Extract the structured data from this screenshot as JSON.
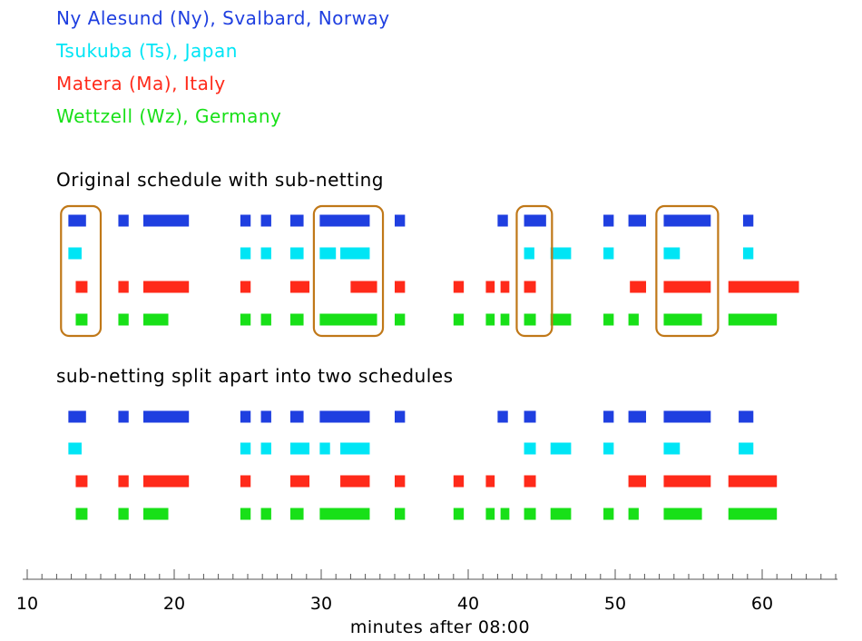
{
  "legend": [
    {
      "label": "Ny Alesund (Ny), Svalbard, Norway",
      "color": "#1f3fe0"
    },
    {
      "label": "Tsukuba (Ts), Japan",
      "color": "#00e5f5"
    },
    {
      "label": "Matera (Ma), Italy",
      "color": "#ff2a1a"
    },
    {
      "label": "Wettzell (Wz), Germany",
      "color": "#18e018"
    }
  ],
  "chart_data": {
    "type": "timeline",
    "xlabel": "minutes after 08:00",
    "xlim": [
      10,
      65
    ],
    "xticks": [
      10,
      20,
      30,
      40,
      50,
      60
    ],
    "box_color": "#c07818",
    "panels": [
      {
        "title": "Original schedule with sub-netting",
        "rows": [
          {
            "station": "Ny",
            "segments": [
              [
                12.8,
                14.0
              ],
              [
                16.2,
                16.9
              ],
              [
                17.9,
                21.0
              ],
              [
                24.5,
                25.2
              ],
              [
                25.9,
                26.6
              ],
              [
                27.9,
                28.8
              ],
              [
                29.9,
                33.3
              ],
              [
                35.0,
                35.7
              ],
              [
                42.0,
                42.7
              ],
              [
                43.8,
                45.3
              ],
              [
                49.2,
                49.9
              ],
              [
                50.9,
                52.1
              ],
              [
                53.3,
                56.5
              ],
              [
                58.7,
                59.4
              ]
            ]
          },
          {
            "station": "Ts",
            "segments": [
              [
                12.8,
                13.7
              ],
              [
                24.5,
                25.2
              ],
              [
                25.9,
                26.6
              ],
              [
                27.9,
                28.8
              ],
              [
                29.9,
                31.0
              ],
              [
                31.3,
                33.3
              ],
              [
                43.8,
                44.5
              ],
              [
                45.6,
                47.0
              ],
              [
                49.2,
                49.9
              ],
              [
                53.3,
                54.4
              ],
              [
                58.7,
                59.4
              ]
            ]
          },
          {
            "station": "Ma",
            "segments": [
              [
                13.3,
                14.1
              ],
              [
                16.2,
                16.9
              ],
              [
                17.9,
                21.0
              ],
              [
                24.5,
                25.2
              ],
              [
                27.9,
                29.2
              ],
              [
                32.0,
                33.8
              ],
              [
                35.0,
                35.7
              ],
              [
                39.0,
                39.7
              ],
              [
                41.2,
                41.8
              ],
              [
                42.2,
                42.8
              ],
              [
                43.8,
                44.6
              ],
              [
                51.0,
                52.1
              ],
              [
                53.3,
                56.5
              ],
              [
                57.7,
                62.5
              ]
            ]
          },
          {
            "station": "Wz",
            "segments": [
              [
                13.3,
                14.1
              ],
              [
                16.2,
                16.9
              ],
              [
                17.9,
                19.6
              ],
              [
                24.5,
                25.2
              ],
              [
                25.9,
                26.6
              ],
              [
                27.9,
                28.8
              ],
              [
                29.9,
                33.8
              ],
              [
                35.0,
                35.7
              ],
              [
                39.0,
                39.7
              ],
              [
                41.2,
                41.8
              ],
              [
                42.2,
                42.8
              ],
              [
                43.8,
                44.6
              ],
              [
                45.6,
                47.0
              ],
              [
                49.2,
                49.9
              ],
              [
                50.9,
                51.6
              ],
              [
                53.3,
                55.9
              ],
              [
                57.7,
                61.0
              ]
            ]
          }
        ],
        "boxes": [
          [
            12.3,
            15.0
          ],
          [
            29.5,
            34.2
          ],
          [
            43.3,
            45.7
          ],
          [
            52.8,
            57.0
          ]
        ]
      },
      {
        "title": "sub-netting split apart into two schedules",
        "rows": [
          {
            "station": "Ny",
            "segments": [
              [
                12.8,
                14.0
              ],
              [
                16.2,
                16.9
              ],
              [
                17.9,
                21.0
              ],
              [
                24.5,
                25.2
              ],
              [
                25.9,
                26.6
              ],
              [
                27.9,
                28.8
              ],
              [
                29.9,
                33.3
              ],
              [
                35.0,
                35.7
              ],
              [
                42.0,
                42.7
              ],
              [
                43.8,
                44.6
              ],
              [
                49.2,
                49.9
              ],
              [
                50.9,
                52.1
              ],
              [
                53.3,
                56.5
              ],
              [
                58.4,
                59.4
              ]
            ]
          },
          {
            "station": "Ts",
            "segments": [
              [
                12.8,
                13.7
              ],
              [
                24.5,
                25.2
              ],
              [
                25.9,
                26.6
              ],
              [
                27.9,
                29.2
              ],
              [
                29.9,
                30.6
              ],
              [
                31.3,
                33.3
              ],
              [
                43.8,
                44.6
              ],
              [
                45.6,
                47.0
              ],
              [
                49.2,
                49.9
              ],
              [
                53.3,
                54.4
              ],
              [
                58.4,
                59.4
              ]
            ]
          },
          {
            "station": "Ma",
            "segments": [
              [
                13.3,
                14.1
              ],
              [
                16.2,
                16.9
              ],
              [
                17.9,
                21.0
              ],
              [
                24.5,
                25.2
              ],
              [
                27.9,
                29.2
              ],
              [
                31.3,
                33.3
              ],
              [
                35.0,
                35.7
              ],
              [
                39.0,
                39.7
              ],
              [
                41.2,
                41.8
              ],
              [
                43.8,
                44.6
              ],
              [
                50.9,
                52.1
              ],
              [
                53.3,
                56.5
              ],
              [
                57.7,
                61.0
              ]
            ]
          },
          {
            "station": "Wz",
            "segments": [
              [
                13.3,
                14.1
              ],
              [
                16.2,
                16.9
              ],
              [
                17.9,
                19.6
              ],
              [
                24.5,
                25.2
              ],
              [
                25.9,
                26.6
              ],
              [
                27.9,
                28.8
              ],
              [
                29.9,
                33.3
              ],
              [
                35.0,
                35.7
              ],
              [
                39.0,
                39.7
              ],
              [
                41.2,
                41.8
              ],
              [
                42.2,
                42.8
              ],
              [
                43.8,
                44.6
              ],
              [
                45.6,
                47.0
              ],
              [
                49.2,
                49.9
              ],
              [
                50.9,
                51.6
              ],
              [
                53.3,
                55.9
              ],
              [
                57.7,
                61.0
              ]
            ]
          }
        ],
        "boxes": []
      }
    ]
  }
}
